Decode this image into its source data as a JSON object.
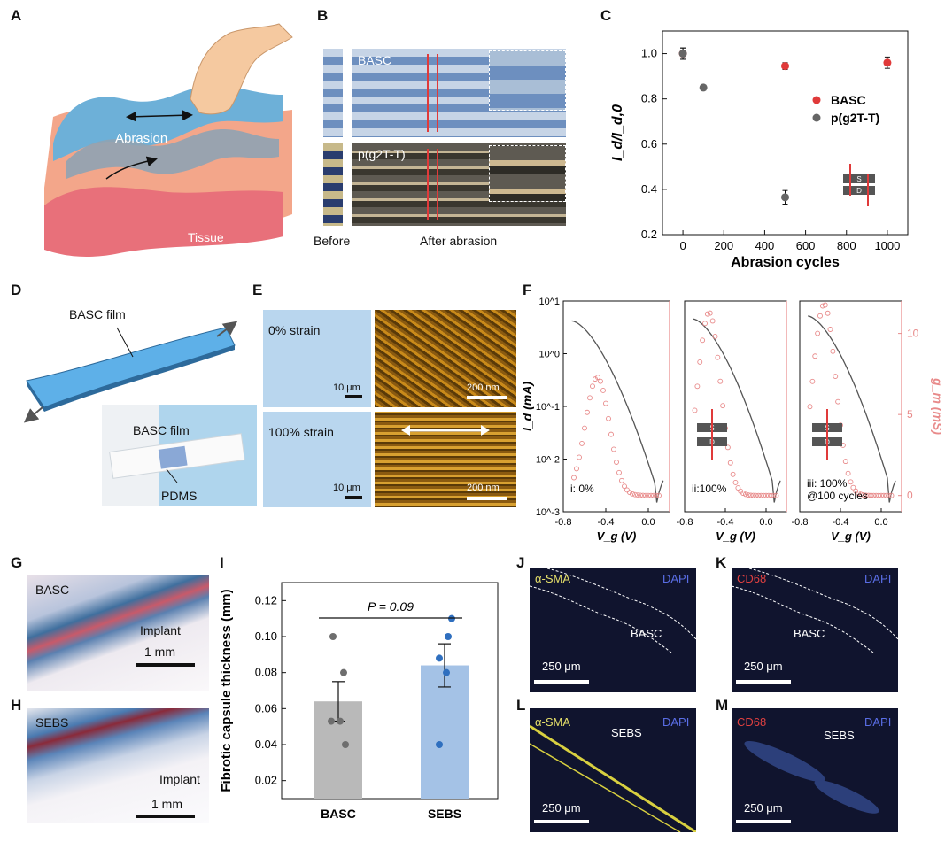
{
  "panels": {
    "A": {
      "label": "A",
      "abrasion": "Abrasion",
      "tissue": "Tissue"
    },
    "B": {
      "label": "B",
      "basc": "BASC",
      "pg2tt": "p(g2T-T)",
      "before": "Before",
      "after": "After abrasion"
    },
    "C": {
      "label": "C"
    },
    "D": {
      "label": "D",
      "film_top": "BASC film",
      "film_inset": "BASC film",
      "pdms": "PDMS"
    },
    "E": {
      "label": "E",
      "strain0": "0% strain",
      "strain100": "100% strain",
      "scale_left_top": "10 μm",
      "scale_right_top": "200 nm",
      "scale_left_bot": "10 μm",
      "scale_right_bot": "200 nm"
    },
    "F": {
      "label": "F"
    },
    "G": {
      "label": "G",
      "tag": "BASC",
      "implant": "Implant",
      "scale": "1 mm"
    },
    "H": {
      "label": "H",
      "tag": "SEBS",
      "implant": "Implant",
      "scale": "1 mm"
    },
    "I": {
      "label": "I"
    },
    "J": {
      "label": "J",
      "stain": "α-SMA",
      "dapi": "DAPI",
      "material": "BASC",
      "scale": "250 μm"
    },
    "K": {
      "label": "K",
      "stain": "CD68",
      "dapi": "DAPI",
      "material": "BASC",
      "scale": "250 μm"
    },
    "L": {
      "label": "L",
      "stain": "α-SMA",
      "dapi": "DAPI",
      "material": "SEBS",
      "scale": "250 μm"
    },
    "M": {
      "label": "M",
      "stain": "CD68",
      "dapi": "DAPI",
      "material": "SEBS",
      "scale": "250 μm"
    }
  },
  "colors": {
    "basc_red": "#e03a3a",
    "pg2tt_gray": "#666666",
    "gm_pink": "#e88a8a",
    "bar_gray": "#b9b9b9",
    "bar_blue": "#a4c2e6",
    "dot_blue": "#2f6fbf"
  },
  "chart_data": [
    {
      "id": "C",
      "type": "scatter",
      "xlabel": "Abrasion cycles",
      "ylabel": "I_d/I_d,0",
      "xlim": [
        -100,
        1100
      ],
      "ylim": [
        0.2,
        1.1
      ],
      "xticks": [
        0,
        200,
        400,
        600,
        800,
        1000
      ],
      "yticks": [
        0.2,
        0.4,
        0.6,
        0.8,
        1.0
      ],
      "xtick_labels": [
        "0",
        "200",
        "400",
        "600",
        "800",
        "1000"
      ],
      "ytick_labels": [
        "0.2",
        "0.4",
        "0.6",
        "0.8",
        "1.0"
      ],
      "legend_position": "right",
      "inset_labels": [
        "S",
        "D"
      ],
      "series": [
        {
          "name": "BASC",
          "x": [
            0,
            500,
            1000
          ],
          "y": [
            1.0,
            0.945,
            0.96
          ],
          "err": [
            0.025,
            0.015,
            0.025
          ]
        },
        {
          "name": "p(g2T-T)",
          "x": [
            0,
            100,
            500
          ],
          "y": [
            1.0,
            0.85,
            0.365
          ],
          "err": [
            0.025,
            0.01,
            0.03
          ]
        }
      ]
    },
    {
      "id": "F",
      "type": "line",
      "xlabel": "V_g (V)",
      "ylabel_left": "I_d (mA)",
      "ylabel_right": "g_m (mS)",
      "y_left_scale": "log",
      "y_left_range": [
        0.001,
        10
      ],
      "y_left_ticks": [
        "10^1",
        "10^0",
        "10^-1",
        "10^-2",
        "10^-3"
      ],
      "y_right_range": [
        -1,
        12
      ],
      "y_right_ticks": [
        "0",
        "5",
        "10"
      ],
      "xlim": [
        -0.8,
        0.2
      ],
      "xtick_labels": [
        "-0.8",
        "-0.4",
        "0.0"
      ],
      "inset_labels": [
        "S",
        "D"
      ],
      "subplots": [
        {
          "label": "i: 0%",
          "gm_peak": 7.3,
          "gm_peak_vg": -0.48,
          "id_start": 4.2
        },
        {
          "label": "ii:100%",
          "gm_peak": 11.3,
          "gm_peak_vg": -0.56,
          "id_start": 4.6
        },
        {
          "label": "iii: 100%\n@100 cycles",
          "gm_peak": 11.8,
          "gm_peak_vg": -0.56,
          "id_start": 5.2
        }
      ]
    },
    {
      "id": "I",
      "type": "bar",
      "ylabel": "Fibrotic capsule thickness (mm)",
      "categories": [
        "BASC",
        "SEBS"
      ],
      "values": [
        0.064,
        0.084
      ],
      "errors": [
        0.011,
        0.012
      ],
      "points": [
        [
          0.1,
          0.08,
          0.053,
          0.053,
          0.04
        ],
        [
          0.11,
          0.1,
          0.088,
          0.08,
          0.04
        ]
      ],
      "ylim": [
        0.01,
        0.13
      ],
      "yticks": [
        0.02,
        0.04,
        0.06,
        0.08,
        0.1,
        0.12
      ],
      "ytick_labels": [
        "0.02",
        "0.04",
        "0.06",
        "0.08",
        "0.10",
        "0.12"
      ],
      "annotation": "P = 0.09"
    }
  ]
}
